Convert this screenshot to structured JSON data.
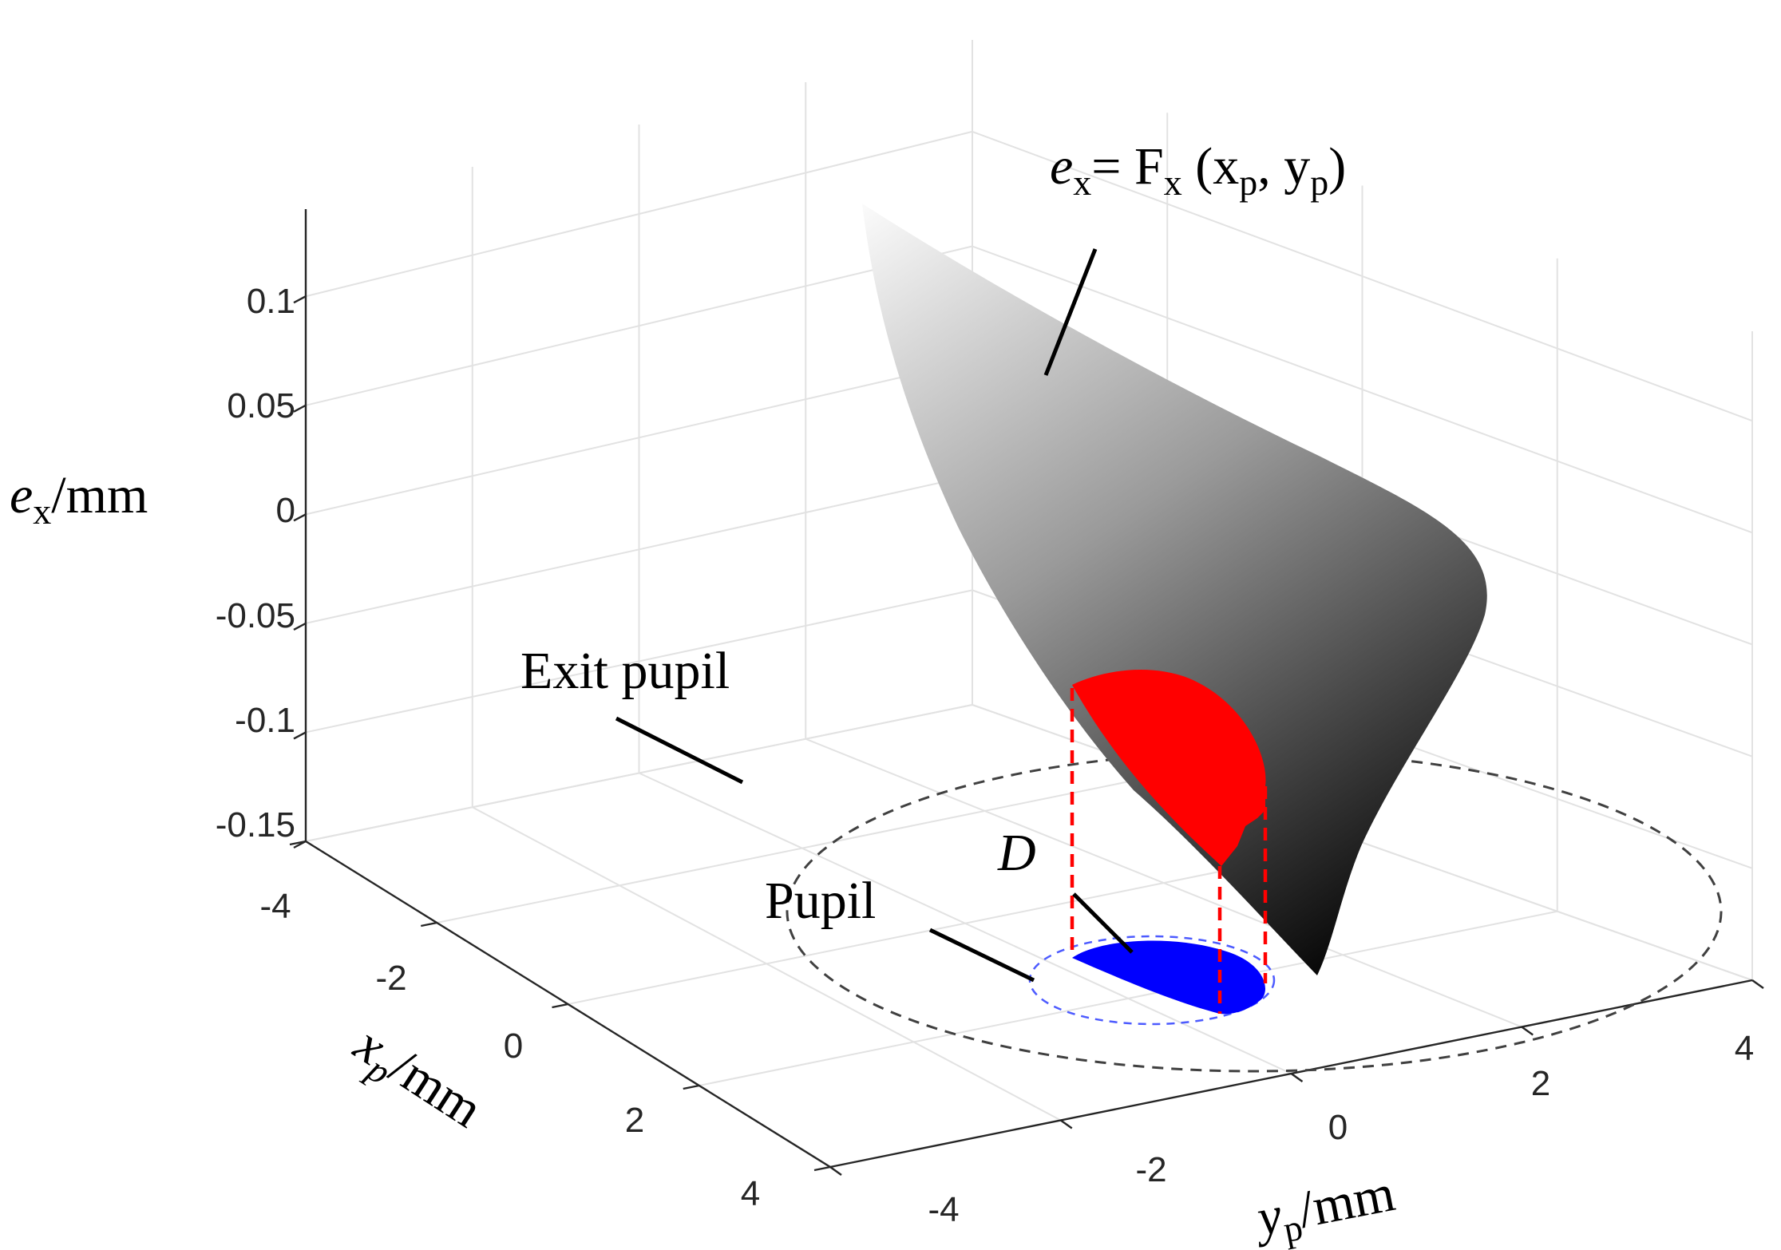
{
  "chart_data": {
    "type": "surface3d",
    "z_axis": {
      "ticks": [
        0.1,
        0.05,
        0,
        -0.05,
        -0.1,
        -0.15
      ],
      "tick_labels": [
        "0.1",
        "0.05",
        "0",
        "-0.05",
        "-0.1",
        "-0.15"
      ],
      "range": [
        -0.15,
        0.14
      ],
      "label_main": "e",
      "label_sub": "x",
      "label_unit": "/mm"
    },
    "x_axis": {
      "ticks": [
        -4,
        -2,
        0,
        2,
        4
      ],
      "tick_labels": [
        "-4",
        "-2",
        "0",
        "2",
        "4"
      ],
      "range": [
        -4,
        4
      ],
      "label_main": "x",
      "label_sub": "p",
      "label_unit": "/mm"
    },
    "y_axis": {
      "ticks": [
        -4,
        -2,
        0,
        2,
        4
      ],
      "tick_labels": [
        "-4",
        "-2",
        "0",
        "2",
        "4"
      ],
      "range": [
        -4,
        4
      ],
      "label_main": "y",
      "label_sub": "p",
      "label_unit": "/mm"
    },
    "grid": true,
    "exit_pupil": {
      "shape": "circle",
      "center": [
        0,
        0
      ],
      "radius": 4,
      "line": "dashed",
      "color": "#404040"
    },
    "pupil": {
      "shape": "circle",
      "center": [
        0.8,
        -1.6
      ],
      "radius": 1.3,
      "line": "dashed",
      "color": "#4d5bff"
    },
    "region_D": {
      "color": "#0000ff"
    },
    "surface": {
      "colormap": "gray",
      "highlight_color": "#ff0000",
      "guide_line_color": "#ff0000"
    },
    "annotations": {
      "surface_formula": {
        "e": "e",
        "e_sub": "x",
        "eq": "= F",
        "f_sub": "x",
        "open": " (x",
        "xp_sub": "p",
        "comma": ", y",
        "yp_sub": "p",
        "close": ")"
      },
      "exit_pupil": "Exit pupil",
      "pupil": "Pupil",
      "region": "D"
    }
  }
}
